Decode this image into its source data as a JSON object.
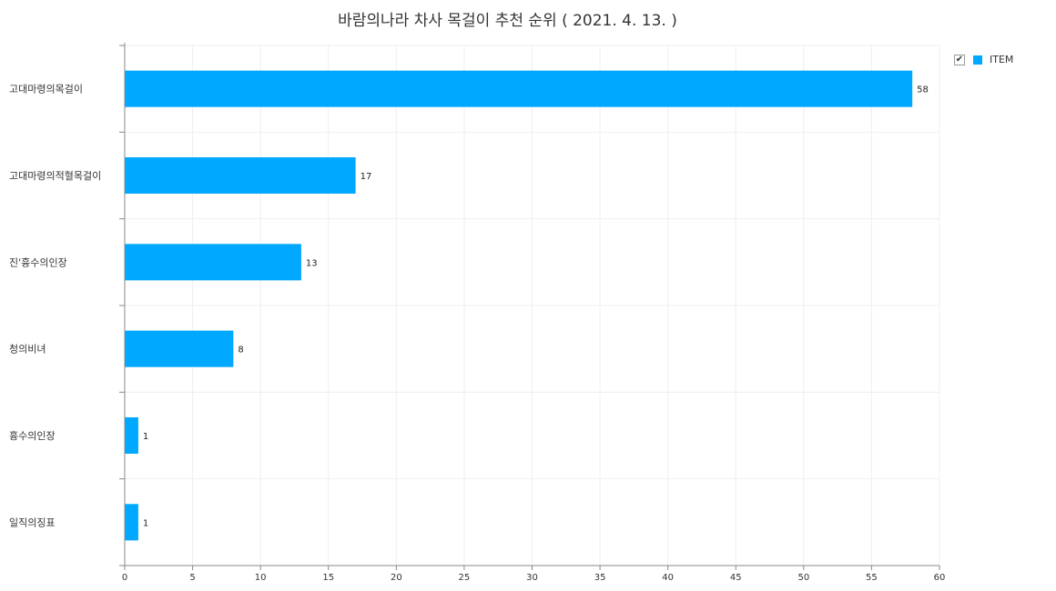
{
  "chart_data": {
    "type": "bar",
    "orientation": "horizontal",
    "title": "바람의나라 차사 목걸이 추천 순위 ( 2021. 4. 13. )",
    "categories": [
      "고대마령의목걸이",
      "고대마령의적혈목걸이",
      "진'흉수의인장",
      "청의비녀",
      "흉수의인장",
      "일직의징표"
    ],
    "series": [
      {
        "name": "ITEM",
        "values": [
          58,
          17,
          13,
          8,
          1,
          1
        ],
        "color": "#00a8ff"
      }
    ],
    "xlim": [
      0,
      60
    ],
    "xticks": [
      0,
      5,
      10,
      15,
      20,
      25,
      30,
      35,
      40,
      45,
      50,
      55,
      60
    ],
    "grid": true,
    "legend_position": "top-right",
    "legend_checked": true
  }
}
